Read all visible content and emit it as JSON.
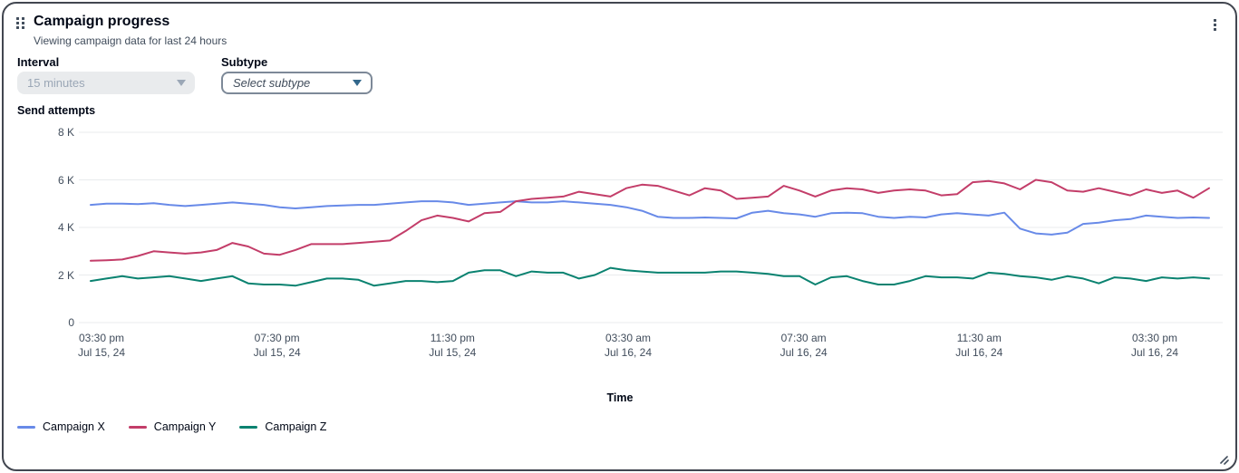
{
  "header": {
    "title": "Campaign progress",
    "subtitle": "Viewing campaign data for last 24 hours"
  },
  "controls": {
    "interval": {
      "label": "Interval",
      "value": "15 minutes",
      "state": "disabled"
    },
    "subtype": {
      "label": "Subtype",
      "placeholder": "Select subtype"
    }
  },
  "colors": {
    "border": "#424650",
    "icon": "#414d5c",
    "text_primary": "#000716",
    "text_secondary": "#414d5c",
    "disabled_bg": "#e9ebed",
    "disabled_text": "#9ba7b6",
    "select_border": "#7d8998",
    "subtype_caret": "#33688c",
    "grid": "#e9ebed"
  },
  "chart_data": {
    "type": "line",
    "title": "Send attempts",
    "ylabel": "Send attempts",
    "xlabel": "Time",
    "ylim": [
      0,
      8000
    ],
    "grid": true,
    "legend_position": "bottom",
    "y_ticks": [
      {
        "label": "8 K",
        "value": 8000
      },
      {
        "label": "6 K",
        "value": 6000
      },
      {
        "label": "4 K",
        "value": 4000
      },
      {
        "label": "2 K",
        "value": 2000
      },
      {
        "label": "0",
        "value": 0
      }
    ],
    "x_ticks": [
      {
        "time": "03:30 pm",
        "date": "Jul 15, 24"
      },
      {
        "time": "07:30 pm",
        "date": "Jul 15, 24"
      },
      {
        "time": "11:30 pm",
        "date": "Jul 15, 24"
      },
      {
        "time": "03:30 am",
        "date": "Jul 16, 24"
      },
      {
        "time": "07:30 am",
        "date": "Jul 16, 24"
      },
      {
        "time": "11:30 am",
        "date": "Jul 16, 24"
      },
      {
        "time": "03:30 pm",
        "date": "Jul 16, 24"
      }
    ],
    "series": [
      {
        "name": "Campaign X",
        "color": "#688ae8",
        "values": [
          4950,
          5000,
          5000,
          4980,
          5020,
          4950,
          4900,
          4950,
          5000,
          5050,
          5000,
          4950,
          4850,
          4800,
          4850,
          4900,
          4920,
          4950,
          4950,
          5000,
          5050,
          5100,
          5100,
          5050,
          4950,
          5000,
          5050,
          5100,
          5050,
          5050,
          5100,
          5050,
          5000,
          4950,
          4850,
          4700,
          4450,
          4400,
          4400,
          4420,
          4400,
          4380,
          4620,
          4700,
          4600,
          4550,
          4450,
          4600,
          4620,
          4600,
          4450,
          4400,
          4450,
          4420,
          4550,
          4600,
          4550,
          4500,
          4620,
          3950,
          3750,
          3700,
          3780,
          4150,
          4200,
          4300,
          4350,
          4500,
          4450,
          4400,
          4420,
          4400
        ]
      },
      {
        "name": "Campaign Y",
        "color": "#c33d69",
        "values": [
          2600,
          2620,
          2650,
          2800,
          3000,
          2950,
          2900,
          2950,
          3050,
          3350,
          3200,
          2900,
          2850,
          3050,
          3300,
          3300,
          3300,
          3350,
          3400,
          3450,
          3850,
          4300,
          4500,
          4400,
          4250,
          4600,
          4650,
          5100,
          5200,
          5250,
          5300,
          5500,
          5400,
          5300,
          5650,
          5800,
          5750,
          5550,
          5350,
          5650,
          5550,
          5200,
          5250,
          5300,
          5750,
          5550,
          5300,
          5550,
          5650,
          5600,
          5450,
          5550,
          5600,
          5550,
          5350,
          5400,
          5900,
          5950,
          5850,
          5600,
          6000,
          5900,
          5550,
          5500,
          5650,
          5500,
          5350,
          5600,
          5450,
          5550,
          5250,
          5650
        ]
      },
      {
        "name": "Campaign Z",
        "color": "#0a8270",
        "values": [
          1750,
          1850,
          1950,
          1850,
          1900,
          1950,
          1850,
          1750,
          1850,
          1950,
          1650,
          1600,
          1600,
          1550,
          1700,
          1850,
          1850,
          1800,
          1550,
          1650,
          1750,
          1750,
          1700,
          1750,
          2100,
          2200,
          2200,
          1950,
          2150,
          2100,
          2100,
          1850,
          2000,
          2300,
          2200,
          2150,
          2100,
          2100,
          2100,
          2100,
          2150,
          2150,
          2100,
          2050,
          1950,
          1950,
          1600,
          1900,
          1950,
          1750,
          1600,
          1600,
          1750,
          1950,
          1900,
          1900,
          1850,
          2100,
          2050,
          1950,
          1900,
          1800,
          1950,
          1850,
          1650,
          1900,
          1850,
          1750,
          1900,
          1850,
          1900,
          1850
        ]
      }
    ]
  }
}
